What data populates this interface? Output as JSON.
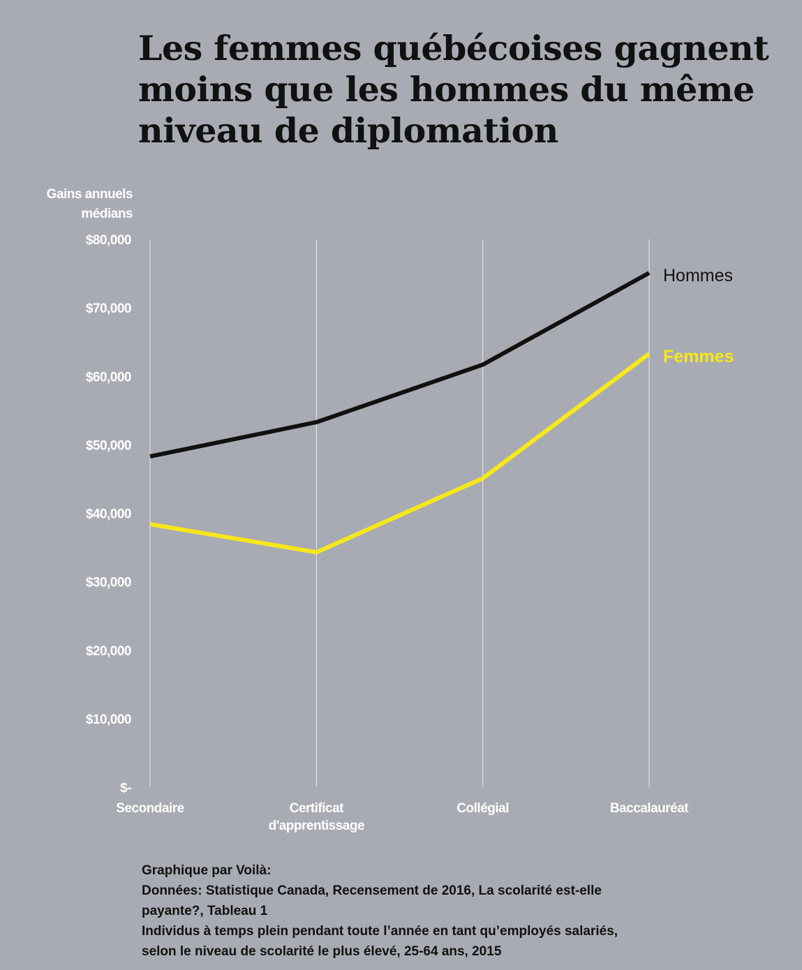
{
  "title_lines": [
    "Les femmes québécoises gagnent",
    "moins que les hommes du même",
    "niveau de diplomation"
  ],
  "footer_lines": [
    "Graphique par Voilà:",
    "Données: Statistique Canada, Recensement de 2016, La scolarité est-elle",
    "payante?, Tableau 1",
    "Individus à temps plein pendant toute l’année en tant qu’employés salariés,",
    "selon le niveau de scolarité le plus élevé, 25-64 ans, 2015"
  ],
  "colors": {
    "background": "#a8abb3",
    "grid": "#eaeaea",
    "axis_text": "#ffffff",
    "hommes": "#111111",
    "femmes": "#f7e81a"
  },
  "chart_data": {
    "type": "line",
    "title": "Les femmes québécoises gagnent moins que les hommes du même niveau de diplomation",
    "ylabel_lines": [
      "Gains annuels",
      "médians"
    ],
    "xlabel": "",
    "categories": [
      [
        "Secondaire"
      ],
      [
        "Certificat",
        "d'apprentissage"
      ],
      [
        "Collégial"
      ],
      [
        "Baccalauréat"
      ]
    ],
    "yticks": [
      {
        "value": 80000,
        "label": "$80,000"
      },
      {
        "value": 70000,
        "label": "$70,000"
      },
      {
        "value": 60000,
        "label": "$60,000"
      },
      {
        "value": 50000,
        "label": "$50,000"
      },
      {
        "value": 40000,
        "label": "$40,000"
      },
      {
        "value": 30000,
        "label": "$30,000"
      },
      {
        "value": 20000,
        "label": "$20,000"
      },
      {
        "value": 10000,
        "label": "$10,000"
      },
      {
        "value": 0,
        "label": "$-"
      }
    ],
    "ylim": [
      0,
      80000
    ],
    "grid": "vertical",
    "legend": "direct labels at line ends",
    "series": [
      {
        "name": "Hommes",
        "values": [
          48300,
          53300,
          61700,
          75100
        ]
      },
      {
        "name": "Femmes",
        "values": [
          38400,
          34300,
          45100,
          63300
        ]
      }
    ]
  }
}
